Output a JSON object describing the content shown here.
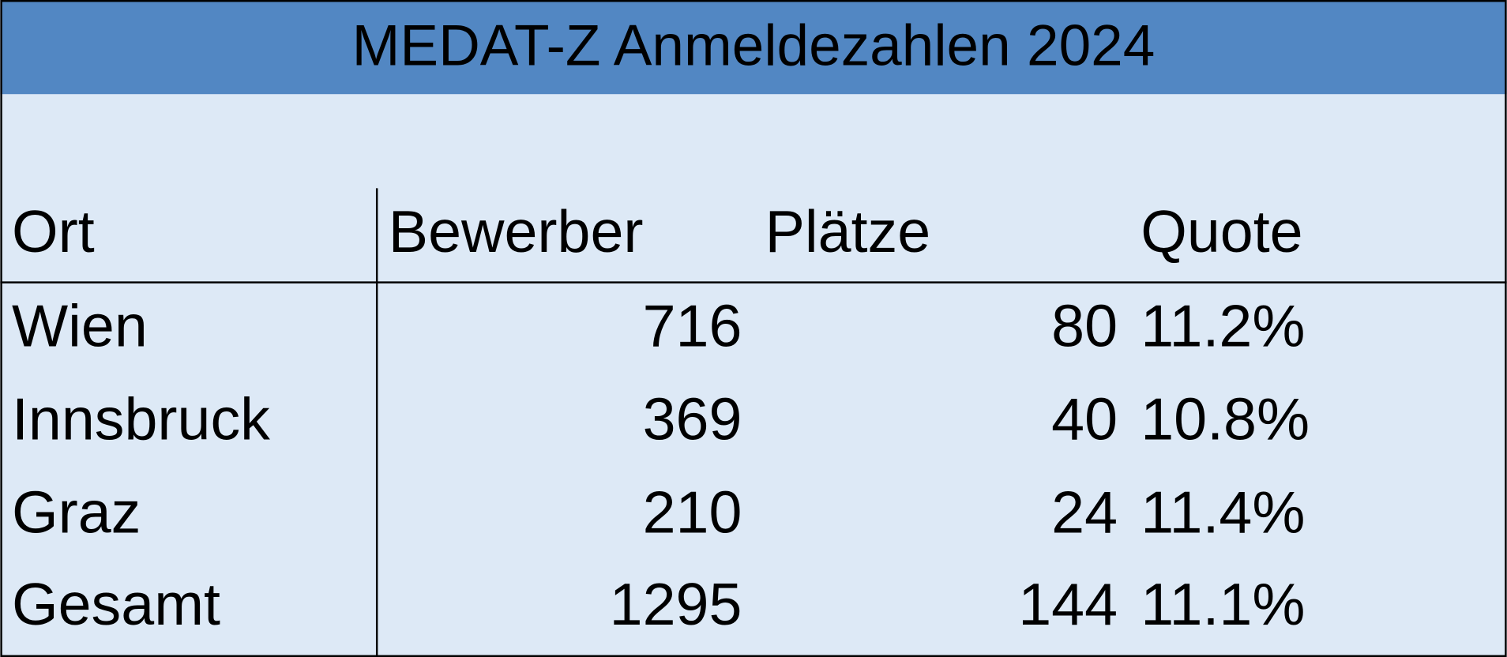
{
  "header": {
    "title": "MEDAT-Z Anmeldezahlen 2024"
  },
  "table": {
    "columns": [
      "Ort",
      "Bewerber",
      "Plätze",
      "Quote"
    ],
    "rows": [
      [
        "Wien",
        716,
        80,
        "11.2%"
      ],
      [
        "Innsbruck",
        369,
        40,
        "10.8%"
      ],
      [
        "Graz",
        210,
        24,
        "11.4%"
      ],
      [
        "Gesamt",
        1295,
        144,
        "11.1%"
      ]
    ]
  }
}
